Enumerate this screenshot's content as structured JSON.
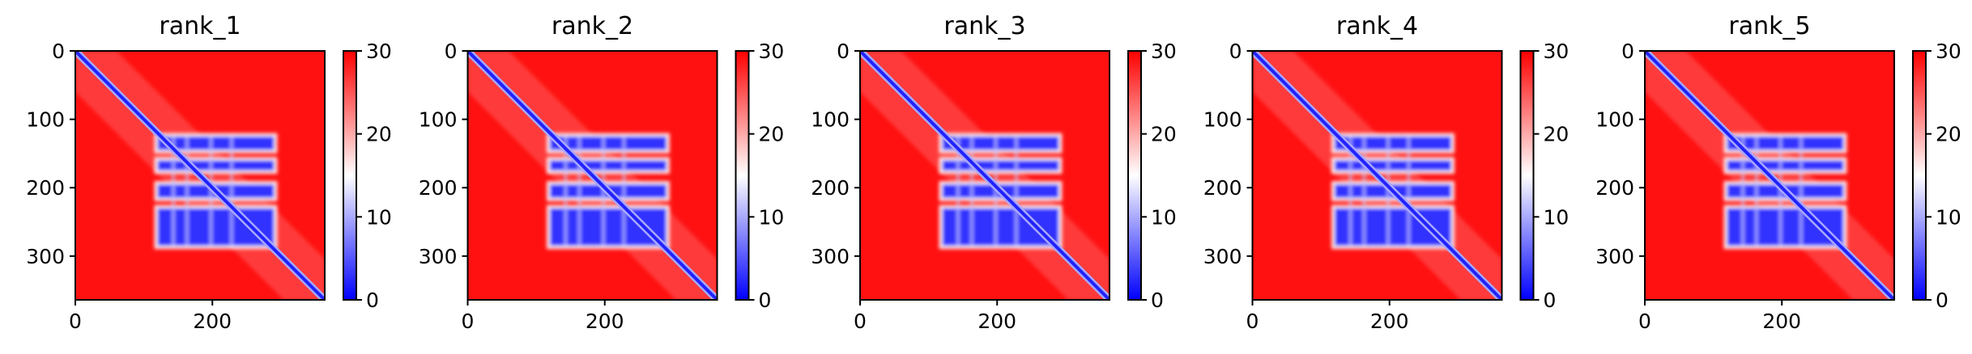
{
  "chart_data": [
    {
      "type": "heatmap",
      "title": "rank_1",
      "xlabel": "",
      "ylabel": "",
      "x_ticks": [
        0,
        200
      ],
      "y_ticks": [
        0,
        100,
        200,
        300
      ],
      "xlim": [
        0,
        364
      ],
      "ylim": [
        364,
        0
      ],
      "colorbar": {
        "ticks": [
          0,
          10,
          20,
          30
        ],
        "range": [
          0,
          30
        ],
        "colors": [
          "#0000ff",
          "#ffffff",
          "#ff0000"
        ]
      },
      "matrix_size": 364,
      "blocks": [
        [
          120,
          290
        ],
        [
          125,
          145
        ],
        [
          160,
          175
        ],
        [
          195,
          215
        ],
        [
          230,
          285
        ]
      ],
      "block_value": 3,
      "background_value": 29,
      "diagonal_value": 2
    },
    {
      "type": "heatmap",
      "title": "rank_2",
      "xlabel": "",
      "ylabel": "",
      "x_ticks": [
        0,
        200
      ],
      "y_ticks": [
        0,
        100,
        200,
        300
      ],
      "xlim": [
        0,
        364
      ],
      "ylim": [
        364,
        0
      ],
      "colorbar": {
        "ticks": [
          0,
          10,
          20,
          30
        ],
        "range": [
          0,
          30
        ],
        "colors": [
          "#0000ff",
          "#ffffff",
          "#ff0000"
        ]
      },
      "matrix_size": 364,
      "blocks": [
        [
          120,
          290
        ],
        [
          125,
          145
        ],
        [
          160,
          175
        ],
        [
          195,
          215
        ],
        [
          230,
          285
        ]
      ],
      "block_value": 3,
      "background_value": 29,
      "diagonal_value": 2
    },
    {
      "type": "heatmap",
      "title": "rank_3",
      "xlabel": "",
      "ylabel": "",
      "x_ticks": [
        0,
        200
      ],
      "y_ticks": [
        0,
        100,
        200,
        300
      ],
      "xlim": [
        0,
        364
      ],
      "ylim": [
        364,
        0
      ],
      "colorbar": {
        "ticks": [
          0,
          10,
          20,
          30
        ],
        "range": [
          0,
          30
        ],
        "colors": [
          "#0000ff",
          "#ffffff",
          "#ff0000"
        ]
      },
      "matrix_size": 364,
      "blocks": [
        [
          120,
          290
        ],
        [
          125,
          145
        ],
        [
          160,
          175
        ],
        [
          195,
          215
        ],
        [
          230,
          285
        ]
      ],
      "block_value": 3,
      "background_value": 29,
      "diagonal_value": 2
    },
    {
      "type": "heatmap",
      "title": "rank_4",
      "xlabel": "",
      "ylabel": "",
      "x_ticks": [
        0,
        200
      ],
      "y_ticks": [
        0,
        100,
        200,
        300
      ],
      "xlim": [
        0,
        364
      ],
      "ylim": [
        364,
        0
      ],
      "colorbar": {
        "ticks": [
          0,
          10,
          20,
          30
        ],
        "range": [
          0,
          30
        ],
        "colors": [
          "#0000ff",
          "#ffffff",
          "#ff0000"
        ]
      },
      "matrix_size": 364,
      "blocks": [
        [
          120,
          290
        ],
        [
          125,
          145
        ],
        [
          160,
          175
        ],
        [
          195,
          215
        ],
        [
          230,
          285
        ]
      ],
      "block_value": 3,
      "background_value": 29,
      "diagonal_value": 2
    },
    {
      "type": "heatmap",
      "title": "rank_5",
      "xlabel": "",
      "ylabel": "",
      "x_ticks": [
        0,
        200
      ],
      "y_ticks": [
        0,
        100,
        200,
        300
      ],
      "xlim": [
        0,
        364
      ],
      "ylim": [
        364,
        0
      ],
      "colorbar": {
        "ticks": [
          0,
          10,
          20,
          30
        ],
        "range": [
          0,
          30
        ],
        "colors": [
          "#0000ff",
          "#ffffff",
          "#ff0000"
        ]
      },
      "matrix_size": 364,
      "blocks": [
        [
          120,
          290
        ],
        [
          125,
          145
        ],
        [
          160,
          175
        ],
        [
          195,
          215
        ],
        [
          230,
          285
        ]
      ],
      "block_value": 3,
      "background_value": 29,
      "diagonal_value": 2
    }
  ]
}
